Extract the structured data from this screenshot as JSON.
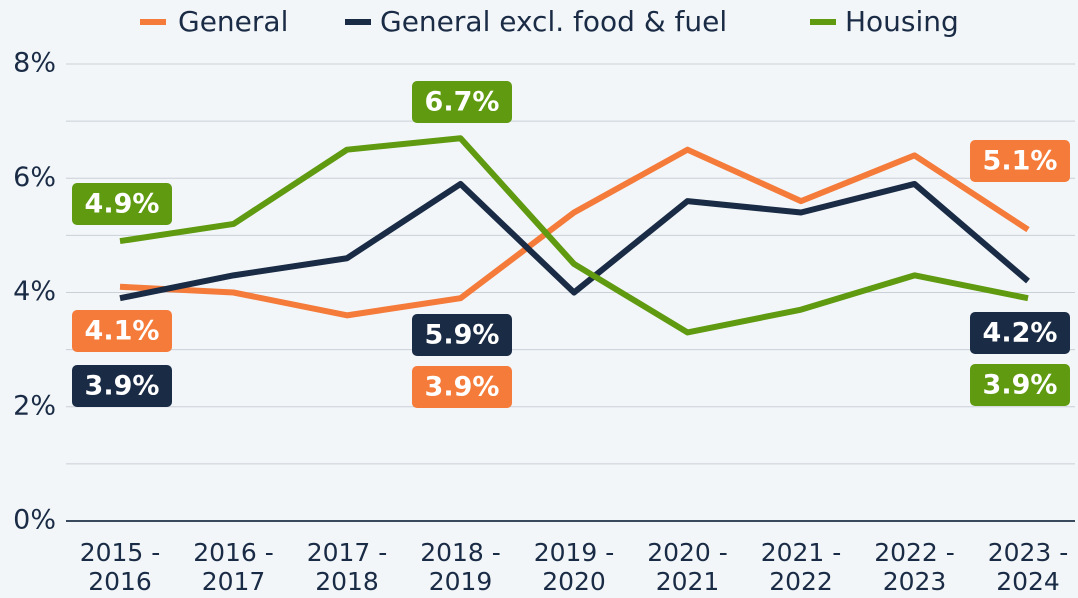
{
  "chart_data": {
    "type": "line",
    "categories": [
      "2015 - 2016",
      "2016 - 2017",
      "2017 - 2018",
      "2018 - 2019",
      "2019 - 2020",
      "2020 - 2021",
      "2021 - 2022",
      "2022 - 2023",
      "2023 - 2024"
    ],
    "series": [
      {
        "name": "General",
        "color": "#f47b3a",
        "values": [
          4.1,
          4.0,
          3.6,
          3.9,
          5.4,
          6.5,
          5.6,
          6.4,
          5.1
        ],
        "value_labels": [
          "4.1%",
          null,
          null,
          "3.9%",
          null,
          null,
          null,
          null,
          "5.1%"
        ]
      },
      {
        "name": "General excl. food & fuel",
        "color": "#1a2b45",
        "values": [
          3.9,
          4.3,
          4.6,
          5.9,
          4.0,
          5.6,
          5.4,
          5.9,
          4.2
        ],
        "value_labels": [
          "3.9%",
          null,
          null,
          "5.9%",
          null,
          null,
          null,
          null,
          "4.2%"
        ]
      },
      {
        "name": "Housing",
        "color": "#5f9a10",
        "values": [
          4.9,
          5.2,
          6.5,
          6.7,
          4.5,
          3.3,
          3.7,
          4.3,
          3.9
        ],
        "value_labels": [
          "4.9%",
          null,
          null,
          "6.7%",
          null,
          null,
          null,
          null,
          "3.9%"
        ]
      }
    ],
    "ylim": [
      0,
      8
    ],
    "yticks": [
      {
        "value": 0,
        "label": "0%"
      },
      {
        "value": 2,
        "label": "2%"
      },
      {
        "value": 4,
        "label": "4%"
      },
      {
        "value": 6,
        "label": "6%"
      },
      {
        "value": 8,
        "label": "8%"
      }
    ],
    "minor_yticks": [
      1,
      3,
      5,
      7
    ],
    "grid": true,
    "legend": "top"
  }
}
